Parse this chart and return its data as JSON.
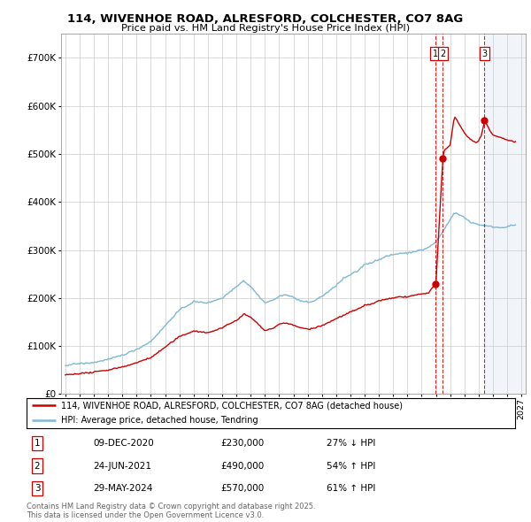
{
  "title_line1": "114, WIVENHOE ROAD, ALRESFORD, COLCHESTER, CO7 8AG",
  "title_line2": "Price paid vs. HM Land Registry's House Price Index (HPI)",
  "ylim": [
    0,
    750000
  ],
  "yticks": [
    0,
    100000,
    200000,
    300000,
    400000,
    500000,
    600000,
    700000
  ],
  "ytick_labels": [
    "£0",
    "£100K",
    "£200K",
    "£300K",
    "£400K",
    "£500K",
    "£600K",
    "£700K"
  ],
  "xlim_start": 1994.7,
  "xlim_end": 2027.3,
  "hpi_color": "#7eb8d4",
  "price_color": "#cc0000",
  "legend_label_red": "114, WIVENHOE ROAD, ALRESFORD, COLCHESTER, CO7 8AG (detached house)",
  "legend_label_blue": "HPI: Average price, detached house, Tendring",
  "transactions": [
    {
      "num": 1,
      "date": "09-DEC-2020",
      "price": 230000,
      "pct": "27%",
      "dir": "↓",
      "x": 2020.94
    },
    {
      "num": 2,
      "date": "24-JUN-2021",
      "price": 490000,
      "pct": "54%",
      "dir": "↑",
      "x": 2021.48
    },
    {
      "num": 3,
      "date": "29-MAY-2024",
      "price": 570000,
      "pct": "61%",
      "dir": "↑",
      "x": 2024.41
    }
  ],
  "table_rows": [
    {
      "num": "1",
      "date": "09-DEC-2020",
      "price": "£230,000",
      "pct": "27% ↓ HPI"
    },
    {
      "num": "2",
      "date": "24-JUN-2021",
      "price": "£490,000",
      "pct": "54% ↑ HPI"
    },
    {
      "num": "3",
      "date": "29-MAY-2024",
      "price": "£570,000",
      "pct": "61% ↑ HPI"
    }
  ],
  "footnote": "Contains HM Land Registry data © Crown copyright and database right 2025.\nThis data is licensed under the Open Government Licence v3.0.",
  "bg_color": "#ffffff",
  "plot_bg_color": "#ffffff",
  "grid_color": "#cccccc",
  "hatch_color": "#d0d8e8"
}
